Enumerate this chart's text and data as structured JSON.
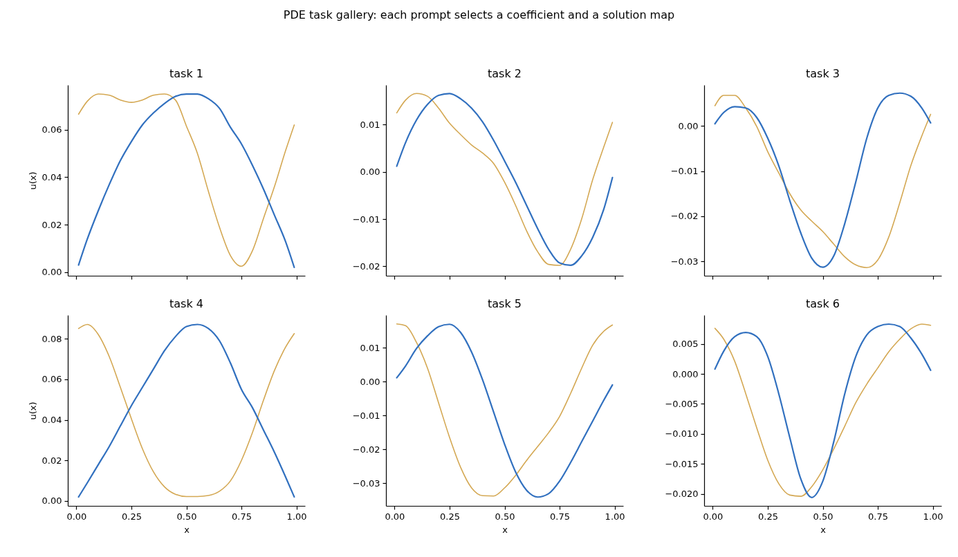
{
  "chart_data": [
    {
      "type": "other",
      "title": "PDE task gallery: each prompt selects a coefficient and a solution map"
    },
    {
      "type": "line",
      "title": "task 1",
      "ylabel": "u(x)",
      "tick_labels": "y",
      "x": [
        0.01,
        0.05,
        0.1,
        0.15,
        0.2,
        0.25,
        0.3,
        0.35,
        0.4,
        0.45,
        0.5,
        0.55,
        0.6,
        0.65,
        0.7,
        0.75,
        0.8,
        0.85,
        0.9,
        0.95,
        0.99
      ],
      "xlim": [
        -0.039,
        1.039
      ],
      "xticks": [
        {
          "value": 0,
          "label": null
        },
        {
          "value": 0.25,
          "label": null
        },
        {
          "value": 0.5,
          "label": null
        },
        {
          "value": 0.75,
          "label": null
        },
        {
          "value": 1,
          "label": null
        }
      ],
      "ylim": [
        -0.0015,
        0.0788
      ],
      "yticks": [
        {
          "value": 0,
          "label": "0.00"
        },
        {
          "value": 0.02,
          "label": "0.02"
        },
        {
          "value": 0.04,
          "label": "0.04"
        },
        {
          "value": 0.06,
          "label": "0.06"
        }
      ],
      "series": [
        {
          "color": "#d4a853",
          "values": [
            0.0665,
            0.072,
            0.075,
            0.0745,
            0.0725,
            0.0715,
            0.0725,
            0.0745,
            0.075,
            0.0725,
            0.0615,
            0.05,
            0.034,
            0.019,
            0.007,
            0.0025,
            0.009,
            0.0226,
            0.036,
            0.051,
            0.062
          ]
        },
        {
          "color": "#3170bf",
          "values": [
            0.003,
            0.014,
            0.026,
            0.037,
            0.047,
            0.055,
            0.062,
            0.067,
            0.071,
            0.074,
            0.075,
            0.075,
            0.073,
            0.069,
            0.061,
            0.054,
            0.045,
            0.035,
            0.024,
            0.013,
            0.002
          ]
        }
      ]
    },
    {
      "type": "line",
      "title": "task 2",
      "tick_labels": "y",
      "x": [
        0.01,
        0.05,
        0.1,
        0.15,
        0.2,
        0.25,
        0.3,
        0.35,
        0.4,
        0.45,
        0.5,
        0.55,
        0.6,
        0.65,
        0.7,
        0.75,
        0.8,
        0.85,
        0.9,
        0.95,
        0.99
      ],
      "xlim": [
        -0.039,
        1.039
      ],
      "xticks": [
        {
          "value": 0,
          "label": null
        },
        {
          "value": 0.25,
          "label": null
        },
        {
          "value": 0.5,
          "label": null
        },
        {
          "value": 0.75,
          "label": null
        },
        {
          "value": 1,
          "label": null
        }
      ],
      "ylim": [
        -0.022,
        0.0184
      ],
      "yticks": [
        {
          "value": -0.02,
          "label": "−0.02"
        },
        {
          "value": -0.01,
          "label": "−0.01"
        },
        {
          "value": 0,
          "label": "0.00"
        },
        {
          "value": 0.01,
          "label": "0.01"
        }
      ],
      "series": [
        {
          "color": "#d4a853",
          "values": [
            0.0125,
            0.0152,
            0.0166,
            0.016,
            0.0135,
            0.0103,
            0.0079,
            0.0057,
            0.004,
            0.0018,
            -0.0022,
            -0.0071,
            -0.0125,
            -0.0169,
            -0.0196,
            -0.0198,
            -0.0164,
            -0.01,
            -0.0017,
            0.0052,
            0.0105
          ]
        },
        {
          "color": "#3170bf",
          "values": [
            0.0012,
            0.0062,
            0.011,
            0.0143,
            0.0162,
            0.0166,
            0.0155,
            0.0135,
            0.0106,
            0.0067,
            0.0023,
            -0.0022,
            -0.0071,
            -0.012,
            -0.0164,
            -0.0193,
            -0.0198,
            -0.0178,
            -0.0139,
            -0.008,
            -0.0012
          ]
        }
      ]
    },
    {
      "type": "line",
      "title": "task 3",
      "tick_labels": "y",
      "x": [
        0.01,
        0.05,
        0.1,
        0.15,
        0.2,
        0.25,
        0.3,
        0.35,
        0.4,
        0.45,
        0.5,
        0.55,
        0.6,
        0.65,
        0.7,
        0.75,
        0.8,
        0.85,
        0.9,
        0.95,
        0.99
      ],
      "xlim": [
        -0.039,
        1.039
      ],
      "xticks": [
        {
          "value": 0,
          "label": null
        },
        {
          "value": 0.25,
          "label": null
        },
        {
          "value": 0.5,
          "label": null
        },
        {
          "value": 0.75,
          "label": null
        },
        {
          "value": 1,
          "label": null
        }
      ],
      "ylim": [
        -0.0332,
        0.0091
      ],
      "yticks": [
        {
          "value": -0.03,
          "label": "−0.03"
        },
        {
          "value": -0.02,
          "label": "−0.02"
        },
        {
          "value": -0.01,
          "label": "−0.01"
        },
        {
          "value": 0,
          "label": "0.00"
        }
      ],
      "series": [
        {
          "color": "#d4a853",
          "values": [
            0.0045,
            0.0068,
            0.0068,
            0.004,
            -0.0001,
            -0.0057,
            -0.0104,
            -0.015,
            -0.0186,
            -0.0211,
            -0.0234,
            -0.0262,
            -0.029,
            -0.0308,
            -0.0314,
            -0.0297,
            -0.0246,
            -0.017,
            -0.0088,
            -0.0022,
            0.0026
          ]
        },
        {
          "color": "#3170bf",
          "values": [
            0.0005,
            0.003,
            0.0043,
            0.004,
            0.0019,
            -0.0027,
            -0.0088,
            -0.0165,
            -0.0237,
            -0.0293,
            -0.0313,
            -0.0288,
            -0.0216,
            -0.0124,
            -0.0027,
            0.004,
            0.0068,
            0.0073,
            0.0066,
            0.004,
            0.0007
          ]
        }
      ]
    },
    {
      "type": "line",
      "title": "task 4",
      "ylabel": "u(x)",
      "xlabel": "x",
      "x": [
        0.01,
        0.05,
        0.1,
        0.15,
        0.2,
        0.25,
        0.3,
        0.35,
        0.4,
        0.45,
        0.5,
        0.55,
        0.6,
        0.65,
        0.7,
        0.75,
        0.8,
        0.85,
        0.9,
        0.95,
        0.99
      ],
      "xlim": [
        -0.039,
        1.039
      ],
      "xticks": [
        {
          "value": 0,
          "label": "0.00"
        },
        {
          "value": 0.25,
          "label": "0.25"
        },
        {
          "value": 0.5,
          "label": "0.50"
        },
        {
          "value": 0.75,
          "label": "0.75"
        },
        {
          "value": 1,
          "label": "1.00"
        }
      ],
      "ylim": [
        -0.0024,
        0.0916
      ],
      "yticks": [
        {
          "value": 0,
          "label": "0.00"
        },
        {
          "value": 0.02,
          "label": "0.02"
        },
        {
          "value": 0.04,
          "label": "0.04"
        },
        {
          "value": 0.06,
          "label": "0.06"
        },
        {
          "value": 0.08,
          "label": "0.08"
        }
      ],
      "series": [
        {
          "color": "#d4a853",
          "values": [
            0.085,
            0.087,
            0.082,
            0.071,
            0.056,
            0.0405,
            0.0258,
            0.0144,
            0.007,
            0.0033,
            0.0022,
            0.0022,
            0.0027,
            0.0048,
            0.0099,
            0.02,
            0.0337,
            0.0496,
            0.0643,
            0.0757,
            0.0825
          ]
        },
        {
          "color": "#3170bf",
          "values": [
            0.002,
            0.009,
            0.018,
            0.027,
            0.037,
            0.047,
            0.056,
            0.065,
            0.074,
            0.081,
            0.086,
            0.087,
            0.085,
            0.079,
            0.068,
            0.055,
            0.046,
            0.035,
            0.024,
            0.012,
            0.002
          ]
        }
      ]
    },
    {
      "type": "line",
      "title": "task 5",
      "xlabel": "x",
      "x": [
        0.01,
        0.05,
        0.1,
        0.15,
        0.2,
        0.25,
        0.3,
        0.35,
        0.4,
        0.45,
        0.5,
        0.55,
        0.6,
        0.65,
        0.7,
        0.75,
        0.8,
        0.85,
        0.9,
        0.95,
        0.99
      ],
      "xlim": [
        -0.039,
        1.039
      ],
      "xticks": [
        {
          "value": 0,
          "label": "0.00"
        },
        {
          "value": 0.25,
          "label": "0.25"
        },
        {
          "value": 0.5,
          "label": "0.50"
        },
        {
          "value": 0.75,
          "label": "0.75"
        },
        {
          "value": 1,
          "label": "1.00"
        }
      ],
      "ylim": [
        -0.0367,
        0.0196
      ],
      "yticks": [
        {
          "value": -0.03,
          "label": "−0.03"
        },
        {
          "value": -0.02,
          "label": "−0.02"
        },
        {
          "value": -0.01,
          "label": "−0.01"
        },
        {
          "value": 0,
          "label": "0.00"
        },
        {
          "value": 0.01,
          "label": "0.01"
        }
      ],
      "series": [
        {
          "color": "#d4a853",
          "values": [
            0.017,
            0.0165,
            0.0115,
            0.0039,
            -0.0063,
            -0.0165,
            -0.0253,
            -0.0314,
            -0.0337,
            -0.0338,
            -0.0314,
            -0.0277,
            -0.0233,
            -0.0192,
            -0.0151,
            -0.0103,
            -0.0035,
            0.0039,
            0.0107,
            0.0148,
            0.0167
          ]
        },
        {
          "color": "#3170bf",
          "values": [
            0.0011,
            0.0046,
            0.0098,
            0.0135,
            0.0162,
            0.0169,
            0.0145,
            0.0087,
            0.0005,
            -0.009,
            -0.0185,
            -0.0267,
            -0.0321,
            -0.0341,
            -0.0331,
            -0.0294,
            -0.0239,
            -0.0178,
            -0.0117,
            -0.0056,
            -0.001
          ]
        }
      ]
    },
    {
      "type": "line",
      "title": "task 6",
      "xlabel": "x",
      "x": [
        0.01,
        0.05,
        0.1,
        0.15,
        0.2,
        0.25,
        0.3,
        0.35,
        0.4,
        0.45,
        0.5,
        0.55,
        0.6,
        0.65,
        0.7,
        0.75,
        0.8,
        0.85,
        0.9,
        0.95,
        0.99
      ],
      "xlim": [
        -0.039,
        1.039
      ],
      "xticks": [
        {
          "value": 0,
          "label": "0.00"
        },
        {
          "value": 0.25,
          "label": "0.25"
        },
        {
          "value": 0.5,
          "label": "0.50"
        },
        {
          "value": 0.75,
          "label": "0.75"
        },
        {
          "value": 1,
          "label": "1.00"
        }
      ],
      "ylim": [
        -0.022,
        0.0098
      ],
      "yticks": [
        {
          "value": -0.02,
          "label": "−0.020"
        },
        {
          "value": -0.015,
          "label": "−0.015"
        },
        {
          "value": -0.01,
          "label": "−0.010"
        },
        {
          "value": -0.005,
          "label": "−0.005"
        },
        {
          "value": 0,
          "label": "0.000"
        },
        {
          "value": 0.005,
          "label": "0.005"
        }
      ],
      "series": [
        {
          "color": "#d4a853",
          "values": [
            0.0076,
            0.0058,
            0.0021,
            -0.0033,
            -0.009,
            -0.0144,
            -0.0183,
            -0.0202,
            -0.0204,
            -0.0188,
            -0.016,
            -0.0125,
            -0.0087,
            -0.0048,
            -0.0017,
            0.001,
            0.0037,
            0.0058,
            0.0075,
            0.0083,
            0.0081
          ]
        },
        {
          "color": "#3170bf",
          "values": [
            0.0008,
            0.0038,
            0.0062,
            0.0069,
            0.0062,
            0.0029,
            -0.0033,
            -0.0106,
            -0.0175,
            -0.0206,
            -0.0179,
            -0.0113,
            -0.0033,
            0.0029,
            0.0065,
            0.0079,
            0.0083,
            0.0079,
            0.006,
            0.0033,
            0.0006
          ]
        }
      ]
    }
  ]
}
